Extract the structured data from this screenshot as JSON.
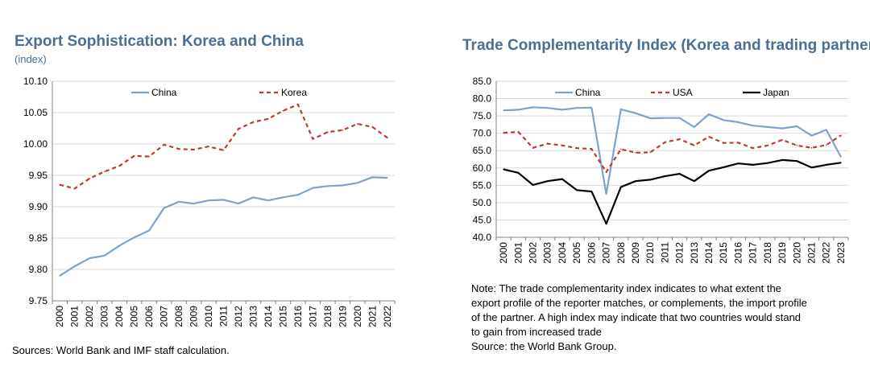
{
  "colors": {
    "china": "#7ea3c9",
    "korea": "#c0392b",
    "usa": "#c0392b",
    "japan": "#000000",
    "title": "#4a6f93"
  },
  "chart_data": [
    {
      "type": "line",
      "title": "Export Sophistication: Korea and China",
      "subtitle": "(index)",
      "xlabel": "",
      "ylabel": "",
      "x": [
        "2000",
        "2001",
        "2002",
        "2003",
        "2004",
        "2005",
        "2006",
        "2007",
        "2008",
        "2009",
        "2010",
        "2011",
        "2012",
        "2013",
        "2014",
        "2015",
        "2016",
        "2017",
        "2018",
        "2019",
        "2020",
        "2021",
        "2022"
      ],
      "ylim": [
        9.75,
        10.1
      ],
      "yticks": [
        "9.75",
        "9.80",
        "9.85",
        "9.90",
        "9.95",
        "10.00",
        "10.05",
        "10.10"
      ],
      "grid": true,
      "legend_position": "top",
      "series": [
        {
          "name": "China",
          "style": "solid",
          "values": [
            9.79,
            9.805,
            9.818,
            9.822,
            9.838,
            9.851,
            9.862,
            9.898,
            9.908,
            9.905,
            9.91,
            9.911,
            9.905,
            9.915,
            9.91,
            9.915,
            9.919,
            9.93,
            9.933,
            9.934,
            9.938,
            9.947,
            9.946
          ]
        },
        {
          "name": "Korea",
          "style": "dashed",
          "values": [
            9.935,
            9.929,
            9.945,
            9.956,
            9.965,
            9.981,
            9.98,
            9.999,
            9.992,
            9.991,
            9.996,
            9.99,
            10.024,
            10.035,
            10.04,
            10.053,
            10.063,
            10.008,
            10.019,
            10.022,
            10.032,
            10.027,
            10.01
          ]
        }
      ],
      "source": "Sources: World Bank and IMF staff calculation."
    },
    {
      "type": "line",
      "title": "Trade Complementarity Index (Korea and trading partners)",
      "xlabel": "",
      "ylabel": "",
      "x": [
        "2000",
        "2001",
        "2002",
        "2003",
        "2004",
        "2005",
        "2006",
        "2007",
        "2008",
        "2009",
        "2010",
        "2011",
        "2012",
        "2013",
        "2014",
        "2015",
        "2016",
        "2017",
        "2018",
        "2019",
        "2020",
        "2021",
        "2022",
        "2023"
      ],
      "ylim": [
        40,
        85
      ],
      "yticks": [
        "40.0",
        "45.0",
        "50.0",
        "55.0",
        "60.0",
        "65.0",
        "70.0",
        "75.0",
        "80.0",
        "85.0"
      ],
      "grid": true,
      "legend_position": "top",
      "series": [
        {
          "name": "China",
          "style": "solid",
          "values": [
            76.6,
            76.8,
            77.5,
            77.3,
            76.8,
            77.3,
            77.4,
            52.5,
            76.9,
            75.8,
            74.3,
            74.4,
            74.4,
            71.8,
            75.5,
            73.8,
            73.2,
            72.2,
            71.8,
            71.4,
            72.0,
            69.3,
            71.0,
            63.2
          ]
        },
        {
          "name": "USA",
          "style": "dashed",
          "values": [
            70.1,
            70.4,
            65.8,
            67.0,
            66.5,
            65.7,
            65.5,
            58.8,
            65.4,
            64.4,
            64.5,
            67.4,
            68.3,
            66.5,
            69.0,
            67.2,
            67.3,
            65.7,
            66.5,
            68.1,
            66.5,
            65.8,
            66.6,
            69.4
          ]
        },
        {
          "name": "Japan",
          "style": "solid",
          "values": [
            59.6,
            58.6,
            55.1,
            56.2,
            56.8,
            53.6,
            53.2,
            43.9,
            54.5,
            56.2,
            56.6,
            57.6,
            58.3,
            56.2,
            59.2,
            60.2,
            61.3,
            60.9,
            61.4,
            62.3,
            62.0,
            60.1,
            60.9,
            61.5
          ]
        }
      ],
      "note_lines": [
        "Note: The trade complementarity index indicates to what extent the",
        "export profile of the reporter matches, or complements, the import profile",
        "of the partner. A high index may indicate that two countries would stand",
        "to gain from increased trade"
      ],
      "source": "Source: the World Bank Group."
    }
  ]
}
